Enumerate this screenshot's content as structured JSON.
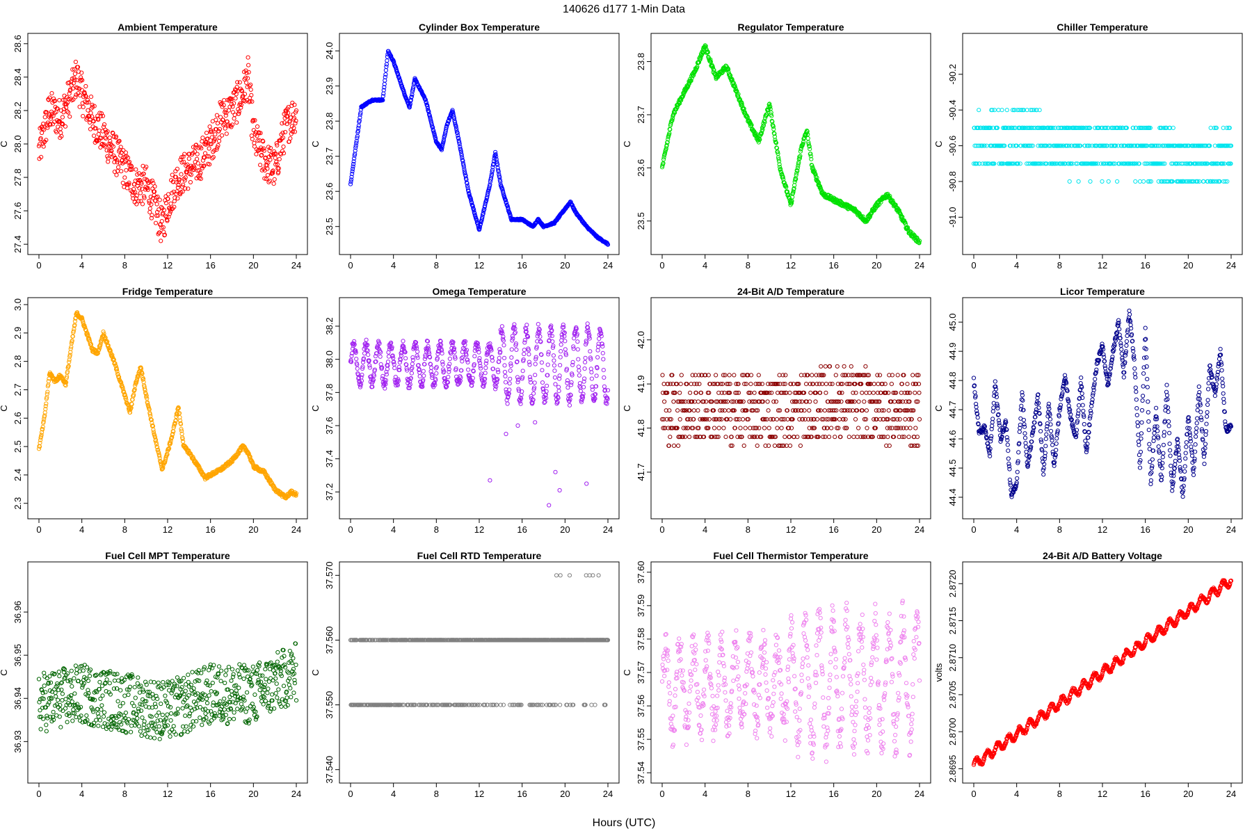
{
  "figure": {
    "title": "140626   d177   1-Min Data",
    "xlabel": "Hours (UTC)"
  },
  "chart_data": [
    {
      "type": "scatter",
      "title": "Ambient Temperature",
      "ylabel": "C",
      "color": "#ff0000",
      "xlim": [
        0,
        24
      ],
      "ylim": [
        27.38,
        28.62
      ],
      "xticks": [
        0,
        4,
        8,
        12,
        16,
        20,
        24
      ],
      "yticks": [
        "27.4",
        "27.6",
        "27.8",
        "28.0",
        "28.2",
        "28.4",
        "28.6"
      ],
      "x": [
        0,
        1,
        2,
        3,
        3.5,
        4,
        5,
        6,
        7,
        8,
        9,
        10,
        11,
        11.5,
        12,
        13,
        14,
        15,
        16,
        17,
        18,
        19,
        19.5,
        20,
        21,
        22,
        23,
        24
      ],
      "y": [
        27.95,
        28.2,
        28.15,
        28.3,
        28.4,
        28.3,
        28.15,
        28.05,
        27.95,
        27.85,
        27.75,
        27.75,
        27.6,
        27.5,
        27.65,
        27.8,
        27.85,
        27.9,
        28.0,
        28.15,
        28.2,
        28.3,
        28.4,
        28.05,
        27.9,
        27.85,
        28.1,
        28.2
      ],
      "noise": 0.12
    },
    {
      "type": "scatter",
      "title": "Cylinder Box Temperature",
      "ylabel": "C",
      "color": "#0000ff",
      "xlim": [
        0,
        24
      ],
      "ylim": [
        23.44,
        24.03
      ],
      "xticks": [
        0,
        4,
        8,
        12,
        16,
        20,
        24
      ],
      "yticks": [
        "23.5",
        "23.6",
        "23.7",
        "23.8",
        "23.9",
        "24.0"
      ],
      "x": [
        0,
        1,
        2,
        3,
        3.5,
        4,
        5,
        5.5,
        6,
        7,
        8,
        8.5,
        9,
        9.5,
        10,
        11,
        12,
        13,
        13.5,
        14,
        15,
        16,
        17,
        17.5,
        18,
        19,
        20,
        20.5,
        21,
        22,
        23,
        24
      ],
      "y": [
        23.62,
        23.84,
        23.86,
        23.86,
        24.0,
        23.97,
        23.88,
        23.84,
        23.92,
        23.86,
        23.74,
        23.72,
        23.79,
        23.83,
        23.76,
        23.6,
        23.49,
        23.62,
        23.71,
        23.62,
        23.52,
        23.52,
        23.5,
        23.52,
        23.5,
        23.51,
        23.55,
        23.57,
        23.54,
        23.5,
        23.47,
        23.45
      ],
      "noise": 0.002
    },
    {
      "type": "scatter",
      "title": "Regulator Temperature",
      "ylabel": "C",
      "color": "#00e000",
      "xlim": [
        0,
        24
      ],
      "ylim": [
        23.45,
        23.84
      ],
      "xticks": [
        0,
        4,
        8,
        12,
        16,
        20,
        24
      ],
      "yticks": [
        "23.5",
        "23.6",
        "23.7",
        "23.8"
      ],
      "x": [
        0,
        1,
        2,
        3,
        4,
        5,
        6,
        7,
        8,
        9,
        10,
        11,
        12,
        13,
        13.5,
        14,
        15,
        16,
        17,
        18,
        19,
        20,
        21,
        22,
        23,
        24
      ],
      "y": [
        23.6,
        23.7,
        23.74,
        23.78,
        23.83,
        23.77,
        23.79,
        23.74,
        23.69,
        23.65,
        23.72,
        23.6,
        23.53,
        23.64,
        23.67,
        23.6,
        23.55,
        23.54,
        23.53,
        23.52,
        23.5,
        23.53,
        23.55,
        23.52,
        23.48,
        23.46
      ],
      "noise": 0.004
    },
    {
      "type": "scatter",
      "title": "Chiller Temperature",
      "ylabel": "C",
      "color": "#00e5ee",
      "xlim": [
        0,
        24
      ],
      "ylim": [
        -91.17,
        -90.01
      ],
      "xticks": [
        0,
        4,
        8,
        12,
        16,
        20,
        24
      ],
      "yticks": [
        "-90.2",
        "-90.4",
        "-90.6",
        "-90.8",
        "-91.0"
      ],
      "x": [
        0,
        4,
        8,
        12,
        16,
        20,
        24
      ],
      "y": [
        -90.6,
        -90.55,
        -90.62,
        -90.62,
        -90.62,
        -90.72,
        -90.6
      ],
      "noise": 0.15,
      "quant": 0.1
    },
    {
      "type": "scatter",
      "title": "Fridge Temperature",
      "ylabel": "C",
      "color": "#ffa500",
      "xlim": [
        0,
        24
      ],
      "ylim": [
        2.27,
        3.0
      ],
      "xticks": [
        0,
        4,
        8,
        12,
        16,
        20,
        24
      ],
      "yticks": [
        "2.3",
        "2.4",
        "2.5",
        "2.6",
        "2.7",
        "2.8",
        "2.9",
        "3.0"
      ],
      "x": [
        0,
        0.5,
        1,
        1.5,
        2,
        2.5,
        3,
        3.5,
        4,
        5,
        5.5,
        6,
        7,
        8,
        8.5,
        9,
        9.5,
        10,
        11,
        11.5,
        12,
        12.5,
        13,
        13.5,
        14,
        15,
        15.5,
        16,
        17,
        18,
        19,
        19.5,
        20,
        21,
        22,
        23,
        23.5,
        24
      ],
      "y": [
        2.49,
        2.6,
        2.76,
        2.73,
        2.75,
        2.72,
        2.85,
        2.97,
        2.95,
        2.84,
        2.83,
        2.9,
        2.8,
        2.68,
        2.62,
        2.72,
        2.78,
        2.68,
        2.5,
        2.42,
        2.48,
        2.55,
        2.64,
        2.5,
        2.48,
        2.42,
        2.39,
        2.4,
        2.42,
        2.45,
        2.5,
        2.48,
        2.43,
        2.41,
        2.35,
        2.32,
        2.34,
        2.33
      ],
      "noise": 0.006
    },
    {
      "type": "scatter",
      "title": "Omega Temperature",
      "ylabel": "C",
      "color": "#a020f0",
      "xlim": [
        0,
        24
      ],
      "ylim": [
        37.08,
        38.33
      ],
      "xticks": [
        0,
        4,
        8,
        12,
        16,
        20,
        24
      ],
      "yticks": [
        "37.2",
        "37.4",
        "37.6",
        "37.8",
        "38.0",
        "38.2"
      ],
      "x": [
        0,
        24
      ],
      "y": [
        37.97,
        37.97
      ],
      "noise": 0.03,
      "wave": {
        "amp": 0.12,
        "amp2": 0.22,
        "period": 1.15,
        "split": 14
      },
      "outliers_x": [
        13,
        14.5,
        15.6,
        17.2,
        18.5,
        19.1,
        19.5,
        22
      ],
      "outliers_y": [
        37.27,
        37.55,
        37.6,
        37.62,
        37.12,
        37.32,
        37.21,
        37.25
      ]
    },
    {
      "type": "scatter",
      "title": "24-Bit A/D Temperature",
      "ylabel": "C",
      "color": "#8b0000",
      "xlim": [
        0,
        24
      ],
      "ylim": [
        41.61,
        42.08
      ],
      "xticks": [
        0,
        4,
        8,
        12,
        16,
        20,
        24
      ],
      "yticks": [
        "41.7",
        "41.8",
        "41.9",
        "42.0"
      ],
      "x": [
        0,
        4,
        8,
        12,
        16,
        20,
        24
      ],
      "y": [
        41.84,
        41.85,
        41.84,
        41.84,
        41.86,
        41.85,
        41.84
      ],
      "noise": 0.08,
      "quant": 0.02
    },
    {
      "type": "scatter",
      "title": "Licor Temperature",
      "ylabel": "C",
      "color": "#00008b",
      "xlim": [
        0,
        24
      ],
      "ylim": [
        44.35,
        45.06
      ],
      "xticks": [
        0,
        4,
        8,
        12,
        16,
        20,
        24
      ],
      "yticks": [
        "44.4",
        "44.5",
        "44.6",
        "44.7",
        "44.8",
        "44.9",
        "45.0"
      ],
      "x": [
        0,
        0.5,
        1,
        1.5,
        2,
        2.5,
        3,
        3.5,
        4,
        4.5,
        5,
        5.5,
        6,
        6.5,
        7,
        7.5,
        8,
        8.5,
        9,
        9.5,
        10,
        10.5,
        11,
        11.5,
        12,
        12.5,
        13,
        13.5,
        14,
        14.5,
        15,
        15.5,
        16,
        16.5,
        17,
        17.5,
        18,
        18.5,
        19,
        19.5,
        20,
        20.5,
        21,
        21.5,
        22,
        22.5,
        23,
        23.5,
        24
      ],
      "y": [
        44.8,
        44.62,
        44.64,
        44.55,
        44.79,
        44.6,
        44.66,
        44.4,
        44.45,
        44.76,
        44.5,
        44.62,
        44.75,
        44.48,
        44.72,
        44.5,
        44.7,
        44.82,
        44.68,
        44.6,
        44.8,
        44.55,
        44.72,
        44.86,
        44.92,
        44.78,
        44.9,
        45.0,
        44.82,
        45.04,
        44.85,
        44.5,
        44.98,
        44.45,
        44.7,
        44.45,
        44.78,
        44.42,
        44.6,
        44.4,
        44.68,
        44.48,
        44.78,
        44.52,
        44.85,
        44.75,
        44.9,
        44.63,
        44.64
      ],
      "noise": 0.01
    },
    {
      "type": "scatter",
      "title": "Fuel Cell MPT Temperature",
      "ylabel": "C",
      "color": "#006400",
      "xlim": [
        0,
        24
      ],
      "ylim": [
        36.922,
        36.97
      ],
      "xticks": [
        0,
        4,
        8,
        12,
        16,
        20,
        24
      ],
      "yticks": [
        "36.93",
        "36.94",
        "36.95",
        "36.96"
      ],
      "x": [
        0,
        4,
        8,
        12,
        16,
        20,
        24
      ],
      "y": [
        36.939,
        36.941,
        36.939,
        36.937,
        36.941,
        36.941,
        36.946
      ],
      "noise": 0.007
    },
    {
      "type": "scatter",
      "title": "Fuel Cell RTD Temperature",
      "ylabel": "C",
      "color": "#808080",
      "xlim": [
        0,
        24
      ],
      "ylim": [
        37.539,
        37.571
      ],
      "xticks": [
        0,
        4,
        8,
        12,
        16,
        20,
        24
      ],
      "yticks": [
        "37.540",
        "37.550",
        "37.560",
        "37.570"
      ],
      "x": [
        0,
        24
      ],
      "y": [
        37.556,
        37.56
      ],
      "noise": 0.006,
      "quant": 0.01
    },
    {
      "type": "scatter",
      "title": "Fuel Cell Thermistor Temperature",
      "ylabel": "C",
      "color": "#ee82ee",
      "xlim": [
        0,
        24
      ],
      "ylim": [
        37.539,
        37.601
      ],
      "xticks": [
        0,
        4,
        8,
        12,
        16,
        20,
        24
      ],
      "yticks": [
        "37.54",
        "37.55",
        "37.56",
        "37.57",
        "37.58",
        "37.59",
        "37.60"
      ],
      "x": [
        0,
        24
      ],
      "y": [
        37.565,
        37.568
      ],
      "noise": 0.006,
      "wave": {
        "amp": 0.012,
        "amp2": 0.018,
        "period": 1.3,
        "split": 12
      }
    },
    {
      "type": "scatter",
      "title": "24-Bit A/D Battery Voltage",
      "ylabel": "volts",
      "color": "#ff0000",
      "xlim": [
        0,
        24
      ],
      "ylim": [
        2.8694,
        2.8722
      ],
      "xticks": [
        0,
        4,
        8,
        12,
        16,
        20,
        24
      ],
      "yticks": [
        "2.8695",
        "2.8700",
        "2.8705",
        "2.8710",
        "2.8715",
        "2.8720"
      ],
      "x": [
        0,
        24
      ],
      "y": [
        2.86955,
        2.87205
      ],
      "noise": 2e-05,
      "wave": {
        "amp": 6e-05,
        "amp2": 6e-05,
        "period": 1.0,
        "split": 24
      }
    }
  ]
}
